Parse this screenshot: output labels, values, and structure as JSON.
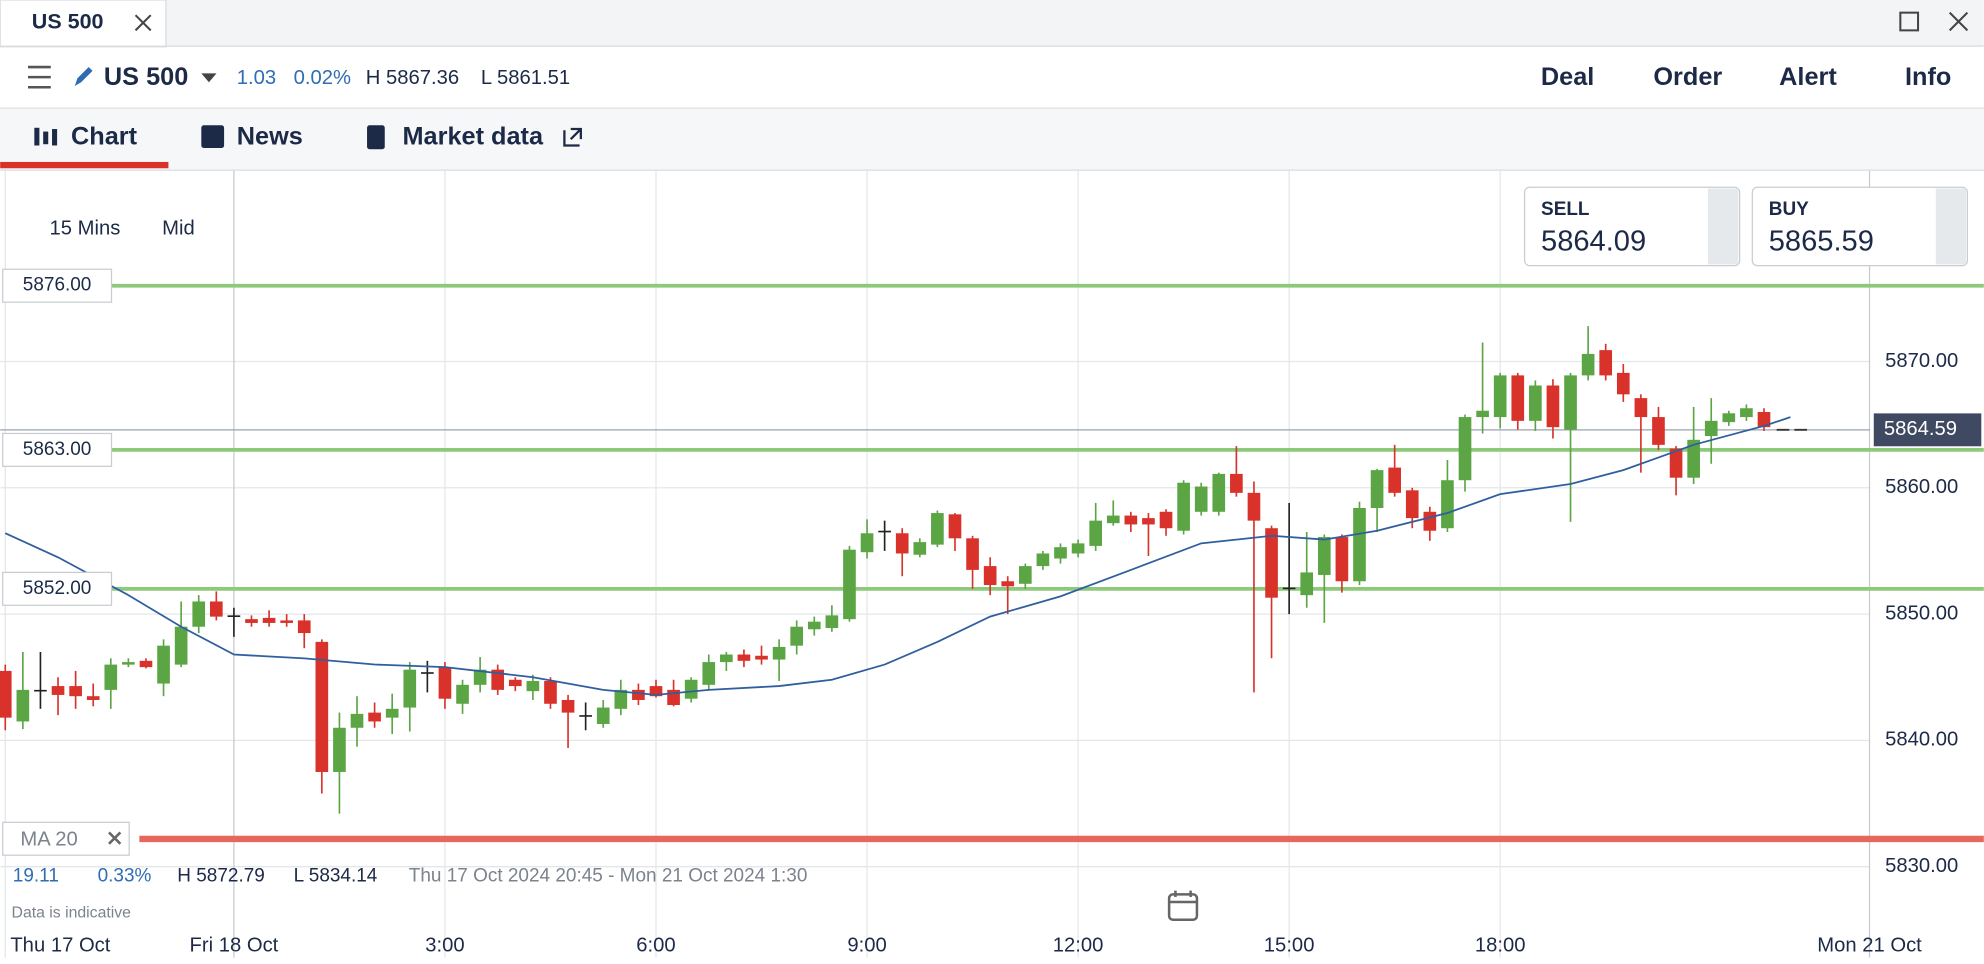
{
  "tab": {
    "title": "US 500"
  },
  "header": {
    "instrument": "US 500",
    "change": "1.03",
    "change_pct": "0.02%",
    "high": "H 5867.36",
    "low": "L 5861.51",
    "actions": [
      "Deal",
      "Order",
      "Alert",
      "Info"
    ]
  },
  "nav": [
    "Chart",
    "News",
    "Market data"
  ],
  "quote": {
    "sell_label": "SELL",
    "sell": "5864.09",
    "buy_label": "BUY",
    "buy": "5865.59"
  },
  "chart_settings": {
    "interval": "15 Mins",
    "price": "Mid"
  },
  "stats": {
    "change": "19.11",
    "change_pct": "0.33%",
    "high": "H 5872.79",
    "low": "L 5834.14",
    "range": "Thu 17 Oct 2024 20:45 - Mon 21 Oct 2024 1:30",
    "note": "Data is indicative"
  },
  "chart_data": {
    "type": "candlestick",
    "up_color": "#5ba544",
    "down_color": "#d8322b",
    "doji_color": "#222222",
    "xlim": [
      -0.29,
      112.5
    ],
    "xticks": [
      {
        "value": 0,
        "label": "Thu 17 Oct"
      },
      {
        "value": 13,
        "label": "Fri 18 Oct"
      },
      {
        "value": 25,
        "label": "3:00"
      },
      {
        "value": 37,
        "label": "6:00"
      },
      {
        "value": 49,
        "label": "9:00"
      },
      {
        "value": 61,
        "label": "12:00"
      },
      {
        "value": 73,
        "label": "15:00"
      },
      {
        "value": 85,
        "label": "18:00"
      },
      {
        "value": 106,
        "label": "Mon 21 Oct"
      }
    ],
    "ylim": [
      5825,
      5885.1
    ],
    "yticks": [
      {
        "value": 5830,
        "label": "5830.00"
      },
      {
        "value": 5840,
        "label": "5840.00"
      },
      {
        "value": 5850,
        "label": "5850.00"
      },
      {
        "value": 5860,
        "label": "5860.00"
      },
      {
        "value": 5870,
        "label": "5870.00"
      }
    ],
    "grid": true,
    "open": [
      5845.5,
      5841.5,
      5844,
      5844.3,
      5844.3,
      5843.5,
      5844,
      5846,
      5846.3,
      5844.5,
      5846,
      5849,
      5851,
      5849.9,
      5849.6,
      5849.7,
      5849.5,
      5849.5,
      5847.8,
      5837.5,
      5841,
      5842.2,
      5841.8,
      5842.6,
      5845.4,
      5845.8,
      5842.9,
      5844.4,
      5845.6,
      5844.8,
      5843.9,
      5844.7,
      5843.2,
      5842,
      5841.3,
      5842.5,
      5844,
      5844.3,
      5844,
      5843.3,
      5844.4,
      5846.2,
      5846.8,
      5846.7,
      5846.4,
      5847.5,
      5848.8,
      5848.9,
      5849.6,
      5854.9,
      5856.6,
      5856.4,
      5854.7,
      5855.5,
      5857.9,
      5856,
      5853.8,
      5852.6,
      5852.4,
      5853.8,
      5854.4,
      5854.8,
      5855.4,
      5857.2,
      5857.8,
      5857.6,
      5858.1,
      5856.6,
      5858.1,
      5858.1,
      5861.1,
      5859.6,
      5856.8,
      5852.1,
      5851.5,
      5853.1,
      5856.1,
      5852.6,
      5858.4,
      5861.6,
      5859.8,
      5858.1,
      5856.8,
      5860.6,
      5865.6,
      5865.6,
      5868.9,
      5865.3,
      5868.1,
      5864.6,
      5868.9,
      5870.9,
      5869.1,
      5867.1,
      5865.6,
      5863.1,
      5860.8,
      5864.1,
      5865.2,
      5865.6,
      5866
    ],
    "high": [
      5846,
      5847,
      5847,
      5845,
      5845.5,
      5844.5,
      5846.5,
      5846.5,
      5846.5,
      5848,
      5851,
      5851.5,
      5851.8,
      5850.5,
      5849.9,
      5850.3,
      5850,
      5850,
      5848,
      5842.2,
      5843.5,
      5843,
      5843.7,
      5846.2,
      5846.3,
      5846.2,
      5844.8,
      5846.6,
      5846,
      5845,
      5845.2,
      5845,
      5843.6,
      5843,
      5843.2,
      5844.8,
      5844.5,
      5844.8,
      5844.8,
      5845,
      5846.8,
      5847,
      5847.2,
      5847.5,
      5848,
      5849.5,
      5849.8,
      5850.7,
      5855.4,
      5857.5,
      5857.4,
      5856.8,
      5856,
      5858.2,
      5858,
      5856.2,
      5854.5,
      5853,
      5854,
      5855,
      5855.6,
      5855.9,
      5858.8,
      5859,
      5858.1,
      5858,
      5858.3,
      5860.6,
      5860.4,
      5861.2,
      5863.3,
      5860.5,
      5857,
      5858.8,
      5856.5,
      5856.3,
      5856.3,
      5858.9,
      5861.5,
      5863.4,
      5860,
      5858.5,
      5862.2,
      5865.8,
      5871.5,
      5869.1,
      5869.1,
      5868.5,
      5868.6,
      5869.1,
      5872.8,
      5871.4,
      5869.8,
      5867.4,
      5866.4,
      5863.3,
      5866.4,
      5867.1,
      5866.1,
      5866.6,
      5866.3
    ],
    "low": [
      5840.8,
      5840.9,
      5842.5,
      5842,
      5842.5,
      5842.7,
      5842.5,
      5845.8,
      5845.7,
      5843.5,
      5845.8,
      5848.5,
      5849.5,
      5848.2,
      5849,
      5849,
      5849,
      5847.3,
      5835.8,
      5834.2,
      5839.5,
      5841,
      5840.5,
      5840.7,
      5843.8,
      5842.5,
      5842.1,
      5843.8,
      5843.6,
      5843.9,
      5843.2,
      5842.5,
      5839.4,
      5840.8,
      5841,
      5842,
      5842.8,
      5843.4,
      5842.7,
      5843,
      5844,
      5845.5,
      5845.8,
      5846,
      5844.7,
      5846.8,
      5848.3,
      5848.6,
      5849.4,
      5854.4,
      5855,
      5853,
      5854.5,
      5855.3,
      5855,
      5852,
      5851.5,
      5850,
      5852,
      5853.5,
      5854,
      5854.5,
      5855,
      5857,
      5856.5,
      5854.6,
      5856.2,
      5856.3,
      5857.8,
      5857.8,
      5859.3,
      5843.8,
      5846.5,
      5850,
      5850.5,
      5849.3,
      5851.7,
      5852.3,
      5856.5,
      5859.3,
      5856.8,
      5855.8,
      5856.5,
      5859.7,
      5864.3,
      5864.7,
      5864.6,
      5864.5,
      5863.9,
      5857.3,
      5868.5,
      5868.5,
      5866.8,
      5861.2,
      5863,
      5859.4,
      5860.3,
      5861.9,
      5864.9,
      5865.3,
      5864.5
    ],
    "close": [
      5841.8,
      5844,
      5844,
      5843.6,
      5843.5,
      5843.2,
      5846,
      5846.2,
      5845.8,
      5847.5,
      5849,
      5851,
      5849.8,
      5849.9,
      5849.3,
      5849.3,
      5849.3,
      5848.5,
      5837.5,
      5841,
      5842.1,
      5841.5,
      5842.5,
      5845.6,
      5845.4,
      5843.3,
      5844.4,
      5845.6,
      5844,
      5844.3,
      5844.7,
      5842.9,
      5842.2,
      5842,
      5842.6,
      5844,
      5843.2,
      5843.5,
      5842.8,
      5844.8,
      5846.2,
      5846.8,
      5846.3,
      5846.4,
      5847.4,
      5849,
      5849.4,
      5849.9,
      5855.1,
      5856.4,
      5856.6,
      5854.8,
      5855.7,
      5858,
      5856,
      5853.5,
      5852.3,
      5852.2,
      5853.8,
      5854.8,
      5855.3,
      5855.6,
      5857.4,
      5857.8,
      5857.1,
      5857.1,
      5856.8,
      5860.4,
      5860.1,
      5861.1,
      5859.6,
      5857.4,
      5851.3,
      5852.1,
      5853.3,
      5856.1,
      5852.6,
      5858.4,
      5861.4,
      5859.6,
      5857.6,
      5856.6,
      5860.6,
      5865.6,
      5866.1,
      5868.9,
      5865.3,
      5868.1,
      5864.8,
      5868.9,
      5870.6,
      5868.9,
      5867.4,
      5865.6,
      5863.4,
      5860.8,
      5863.8,
      5865.3,
      5865.9,
      5866.3,
      5864.8
    ],
    "ma": {
      "name": "MA 20",
      "color": "#2f5f9e",
      "x": [
        0,
        3,
        7,
        10,
        13,
        17,
        21,
        25,
        30,
        34,
        37,
        40,
        44,
        47,
        50,
        53,
        56,
        60,
        64,
        68,
        72,
        75,
        78,
        82,
        85,
        89,
        92,
        96,
        100,
        101.5
      ],
      "values": [
        5856.4,
        5854.5,
        5851.5,
        5849,
        5846.8,
        5846.5,
        5846,
        5845.8,
        5845,
        5844,
        5843.6,
        5844,
        5844.3,
        5844.8,
        5846,
        5847.8,
        5849.8,
        5851.4,
        5853.5,
        5855.6,
        5856.2,
        5855.9,
        5856.6,
        5858,
        5859.5,
        5860.3,
        5861.4,
        5863.4,
        5864.9,
        5865.6
      ]
    },
    "levels": [
      {
        "value": 5876,
        "label": "5876.00"
      },
      {
        "value": 5863,
        "label": "5863.00"
      },
      {
        "value": 5852,
        "label": "5852.00"
      }
    ],
    "level_color": "#8cc97a",
    "alert_level": 5832.2,
    "alert_color": "#e8675c",
    "last_price": {
      "value": 5864.59,
      "label": "5864.59"
    }
  }
}
